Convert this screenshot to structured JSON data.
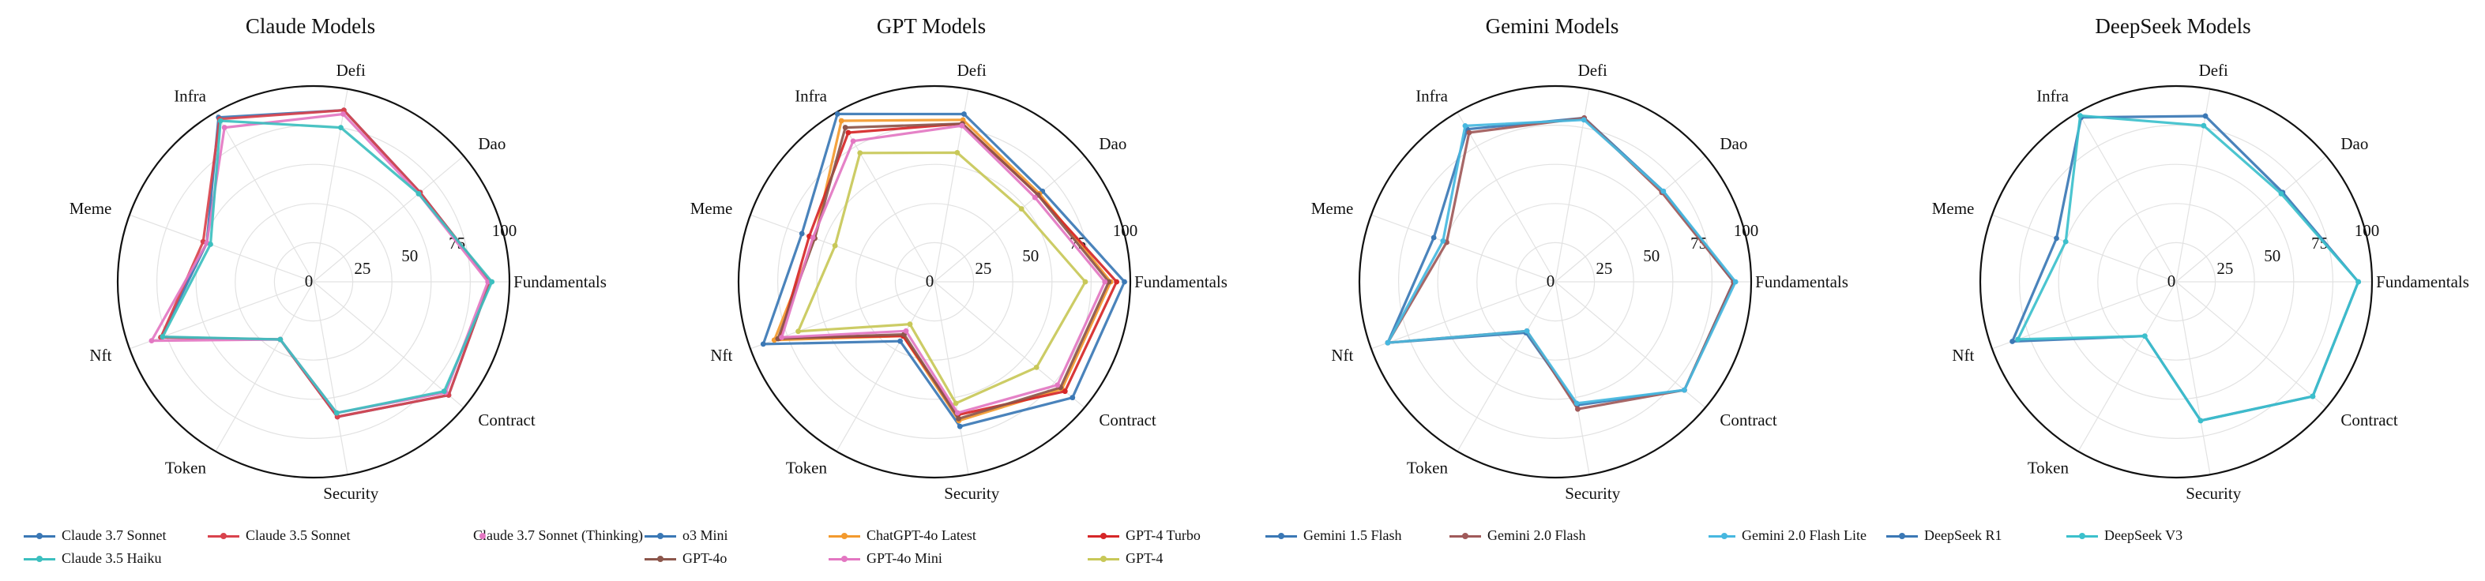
{
  "colors": {
    "grid": "#e2e2e2",
    "outer": "#111111",
    "text": "#111111"
  },
  "chart_data": [
    {
      "type": "radar",
      "title": "Claude Models",
      "axes": [
        "Fundamentals",
        "Dao",
        "Defi",
        "Infra",
        "Meme",
        "Nft",
        "Token",
        "Security",
        "Contract"
      ],
      "rlim": [
        0,
        100
      ],
      "rticks": [
        "0",
        "25",
        "50",
        "75",
        "100"
      ],
      "legend_columns": 3,
      "series": [
        {
          "name": "Claude 3.7 Sonnet",
          "color": "#3b78b5",
          "values": [
            90,
            71,
            89,
            97,
            58,
            83,
            34,
            70,
            90
          ]
        },
        {
          "name": "Claude 3.5 Sonnet",
          "color": "#d9434d",
          "values": [
            90,
            71,
            89,
            96,
            60,
            83,
            34,
            70,
            90
          ]
        },
        {
          "name": "Claude 3.7 Sonnet (Thinking)",
          "color": "#e377c2",
          "values": [
            89,
            70,
            87,
            91,
            58,
            88,
            34,
            68,
            88
          ]
        },
        {
          "name": "Claude 3.5 Haiku",
          "color": "#3cbfbf",
          "values": [
            91,
            70,
            80,
            95,
            56,
            82,
            34,
            68,
            87
          ]
        }
      ]
    },
    {
      "type": "radar",
      "title": "GPT Models",
      "axes": [
        "Fundamentals",
        "Dao",
        "Defi",
        "Infra",
        "Meme",
        "Nft",
        "Token",
        "Security",
        "Contract"
      ],
      "rlim": [
        0,
        100
      ],
      "rticks": [
        "0",
        "25",
        "50",
        "75",
        "100"
      ],
      "legend_columns": 3,
      "series": [
        {
          "name": "o3 Mini",
          "color": "#3b78b5",
          "values": [
            97,
            72,
            87,
            99,
            72,
            93,
            35,
            75,
            92
          ]
        },
        {
          "name": "ChatGPT-4o Latest",
          "color": "#f39a2e",
          "values": [
            90,
            70,
            84,
            95,
            65,
            87,
            32,
            72,
            85
          ]
        },
        {
          "name": "GPT-4 Turbo",
          "color": "#d62728",
          "values": [
            93,
            69,
            82,
            88,
            68,
            84,
            32,
            69,
            87
          ]
        },
        {
          "name": "GPT-4o",
          "color": "#8c564b",
          "values": [
            89,
            69,
            82,
            91,
            65,
            85,
            31,
            71,
            84
          ]
        },
        {
          "name": "GPT-4o Mini",
          "color": "#e377c2",
          "values": [
            87,
            67,
            81,
            83,
            66,
            83,
            29,
            68,
            82
          ]
        },
        {
          "name": "GPT-4",
          "color": "#c8c858",
          "values": [
            77,
            58,
            67,
            76,
            54,
            74,
            25,
            63,
            68
          ]
        }
      ]
    },
    {
      "type": "radar",
      "title": "Gemini Models",
      "axes": [
        "Fundamentals",
        "Dao",
        "Defi",
        "Infra",
        "Meme",
        "Nft",
        "Token",
        "Security",
        "Contract"
      ],
      "rlim": [
        0,
        100
      ],
      "rticks": [
        "0",
        "25",
        "50",
        "75",
        "100"
      ],
      "legend_columns": 3,
      "series": [
        {
          "name": "Gemini 1.5 Flash",
          "color": "#3b78b5",
          "values": [
            91,
            72,
            85,
            90,
            66,
            91,
            30,
            64,
            86
          ]
        },
        {
          "name": "Gemini 2.0 Flash",
          "color": "#a05a5a",
          "values": [
            91,
            71,
            85,
            88,
            59,
            91,
            29,
            66,
            86
          ]
        },
        {
          "name": "Gemini 2.0 Flash Lite",
          "color": "#47b8e0",
          "values": [
            92,
            72,
            84,
            92,
            61,
            91,
            29,
            63,
            86
          ]
        }
      ]
    },
    {
      "type": "radar",
      "title": "DeepSeek Models",
      "axes": [
        "Fundamentals",
        "Dao",
        "Defi",
        "Infra",
        "Meme",
        "Nft",
        "Token",
        "Security",
        "Contract"
      ],
      "rlim": [
        0,
        100
      ],
      "rticks": [
        "0",
        "25",
        "50",
        "75",
        "100"
      ],
      "legend_columns": 2,
      "series": [
        {
          "name": "DeepSeek R1",
          "color": "#3b78b5",
          "values": [
            93,
            71,
            86,
            97,
            65,
            89,
            32,
            72,
            91
          ]
        },
        {
          "name": "DeepSeek V3",
          "color": "#3cc0cc",
          "values": [
            93,
            70,
            81,
            98,
            60,
            86,
            32,
            72,
            91
          ]
        }
      ]
    }
  ]
}
